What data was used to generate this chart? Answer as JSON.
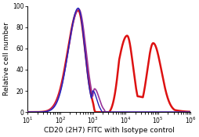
{
  "xlabel": "CD20 (2H7) FITC with Isotype control",
  "ylabel": "Relative cell number",
  "ylim": [
    0,
    100
  ],
  "yticks": [
    0,
    20,
    40,
    60,
    80,
    100
  ],
  "blue_color": "#2222bb",
  "red_color": "#dd1111",
  "purple_color": "#993399",
  "background_color": "#ffffff",
  "font_size": 6.5,
  "tick_font_size": 5.5,
  "linewidth_red": 1.8,
  "linewidth_blue": 1.0,
  "linewidth_purple": 1.2
}
